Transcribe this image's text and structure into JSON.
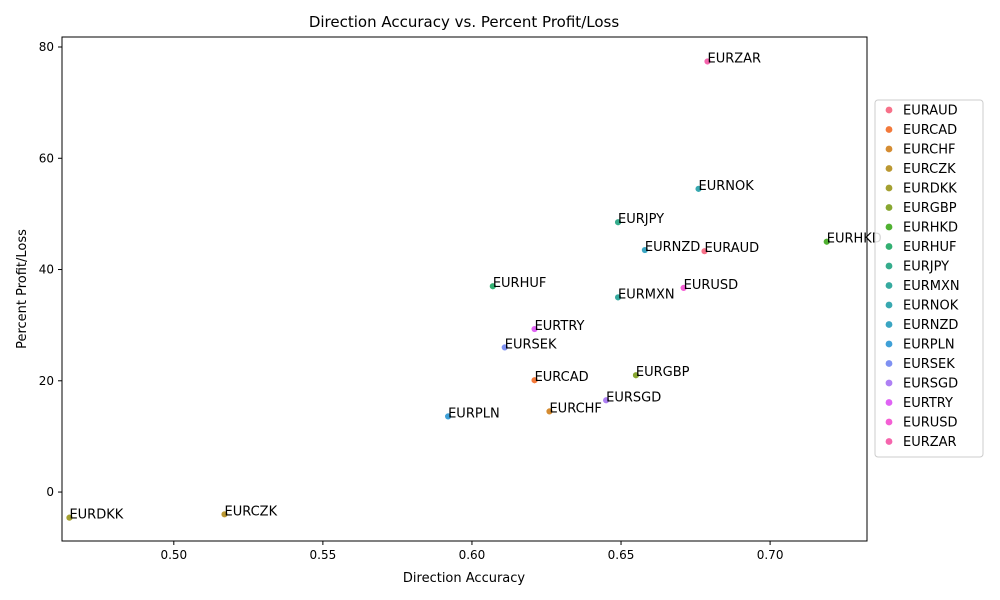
{
  "chart_data": {
    "type": "scatter",
    "title": "Direction Accuracy vs. Percent Profit/Loss",
    "xlabel": "Direction Accuracy",
    "ylabel": "Percent Profit/Loss",
    "xlim": [
      0.4625,
      0.7325
    ],
    "ylim": [
      -8.8,
      81.8
    ],
    "xticks": [
      "0.50",
      "0.55",
      "0.60",
      "0.65",
      "0.70"
    ],
    "xtick_values": [
      0.5,
      0.55,
      0.6,
      0.65,
      0.7
    ],
    "yticks": [
      "0",
      "20",
      "40",
      "60",
      "80"
    ],
    "ytick_values": [
      0,
      20,
      40,
      60,
      80
    ],
    "grid": false,
    "legend_position": "center-right",
    "points": [
      {
        "name": "EURAUD",
        "x": 0.678,
        "y": 43.3,
        "color": "#f77189"
      },
      {
        "name": "EURCAD",
        "x": 0.621,
        "y": 20.1,
        "color": "#f3793a"
      },
      {
        "name": "EURCHF",
        "x": 0.626,
        "y": 14.5,
        "color": "#d58c32"
      },
      {
        "name": "EURCZK",
        "x": 0.517,
        "y": -4.0,
        "color": "#bb9832"
      },
      {
        "name": "EURDKK",
        "x": 0.465,
        "y": -4.6,
        "color": "#a4a031"
      },
      {
        "name": "EURGBP",
        "x": 0.655,
        "y": 21.0,
        "color": "#88a731"
      },
      {
        "name": "EURHKD",
        "x": 0.719,
        "y": 45.0,
        "color": "#50b131"
      },
      {
        "name": "EURHUF",
        "x": 0.607,
        "y": 37.0,
        "color": "#33b072"
      },
      {
        "name": "EURJPY",
        "x": 0.649,
        "y": 48.5,
        "color": "#35ac8c"
      },
      {
        "name": "EURMXN",
        "x": 0.649,
        "y": 35.0,
        "color": "#36aa9f"
      },
      {
        "name": "EURNOK",
        "x": 0.676,
        "y": 54.5,
        "color": "#38a8b0"
      },
      {
        "name": "EURNZD",
        "x": 0.658,
        "y": 43.5,
        "color": "#3aa5c2"
      },
      {
        "name": "EURPLN",
        "x": 0.592,
        "y": 13.6,
        "color": "#3fa0d7"
      },
      {
        "name": "EURSEK",
        "x": 0.611,
        "y": 26.0,
        "color": "#7f91f2"
      },
      {
        "name": "EURSGD",
        "x": 0.645,
        "y": 16.5,
        "color": "#ae80f4"
      },
      {
        "name": "EURTRY",
        "x": 0.621,
        "y": 29.3,
        "color": "#df63f4"
      },
      {
        "name": "EURUSD",
        "x": 0.671,
        "y": 36.7,
        "color": "#f45fd4"
      },
      {
        "name": "EURZAR",
        "x": 0.679,
        "y": 77.4,
        "color": "#f565ad"
      }
    ]
  }
}
